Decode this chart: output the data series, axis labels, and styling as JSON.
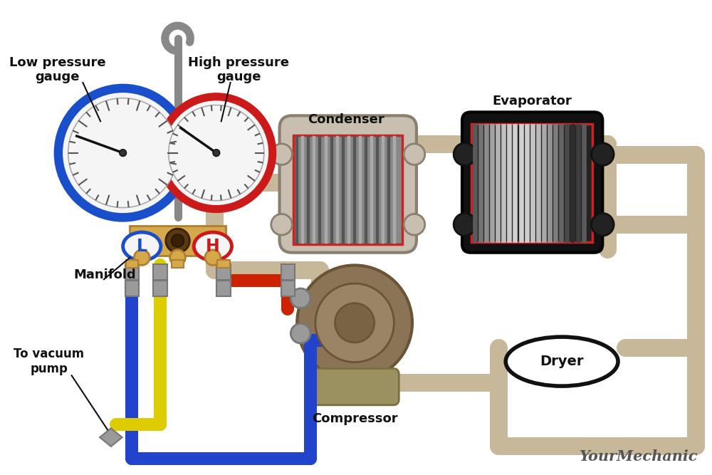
{
  "bg_color": "#ffffff",
  "labels": {
    "low_pressure": "Low pressure\ngauge",
    "high_pressure": "High pressure\ngauge",
    "manifold": "Manifold",
    "condenser": "Condenser",
    "evaporator": "Evaporator",
    "dryer": "Dryer",
    "compressor": "Compressor",
    "vacuum": "To vacuum\npump"
  },
  "colors": {
    "blue_gauge": "#1a4fcc",
    "red_gauge": "#cc1a1a",
    "manifold_body": "#d4a84b",
    "pipe_tan": "#c8b89a",
    "pipe_tan_dark": "#a09080",
    "pipe_blue": "#2244cc",
    "pipe_yellow": "#ddcc00",
    "pipe_red": "#cc2200",
    "condenser_bg": "#c8bfb0",
    "condenser_bg_dark": "#8a7f70",
    "evap_bg": "#111111",
    "dryer_fill": "#ffffff",
    "dryer_border": "#111111",
    "compressor_brown": "#8b7355",
    "compressor_dark": "#6b5335",
    "gauge_face": "#f5f5f5",
    "text_black": "#111111",
    "text_blue": "#1a4fcc",
    "text_red": "#cc1a1a",
    "connector_gray": "#9a9a9a",
    "connector_dark": "#777777",
    "fin_dark": "#555555",
    "fin_light": "#aaaaaa",
    "hook_gray": "#888888",
    "tick_gray": "#555555",
    "needle_black": "#111111",
    "manifold_dark": "#b08030",
    "center_dark": "#5a3a10",
    "center_darker": "#3a2000",
    "yourmechanic": "#444444"
  }
}
